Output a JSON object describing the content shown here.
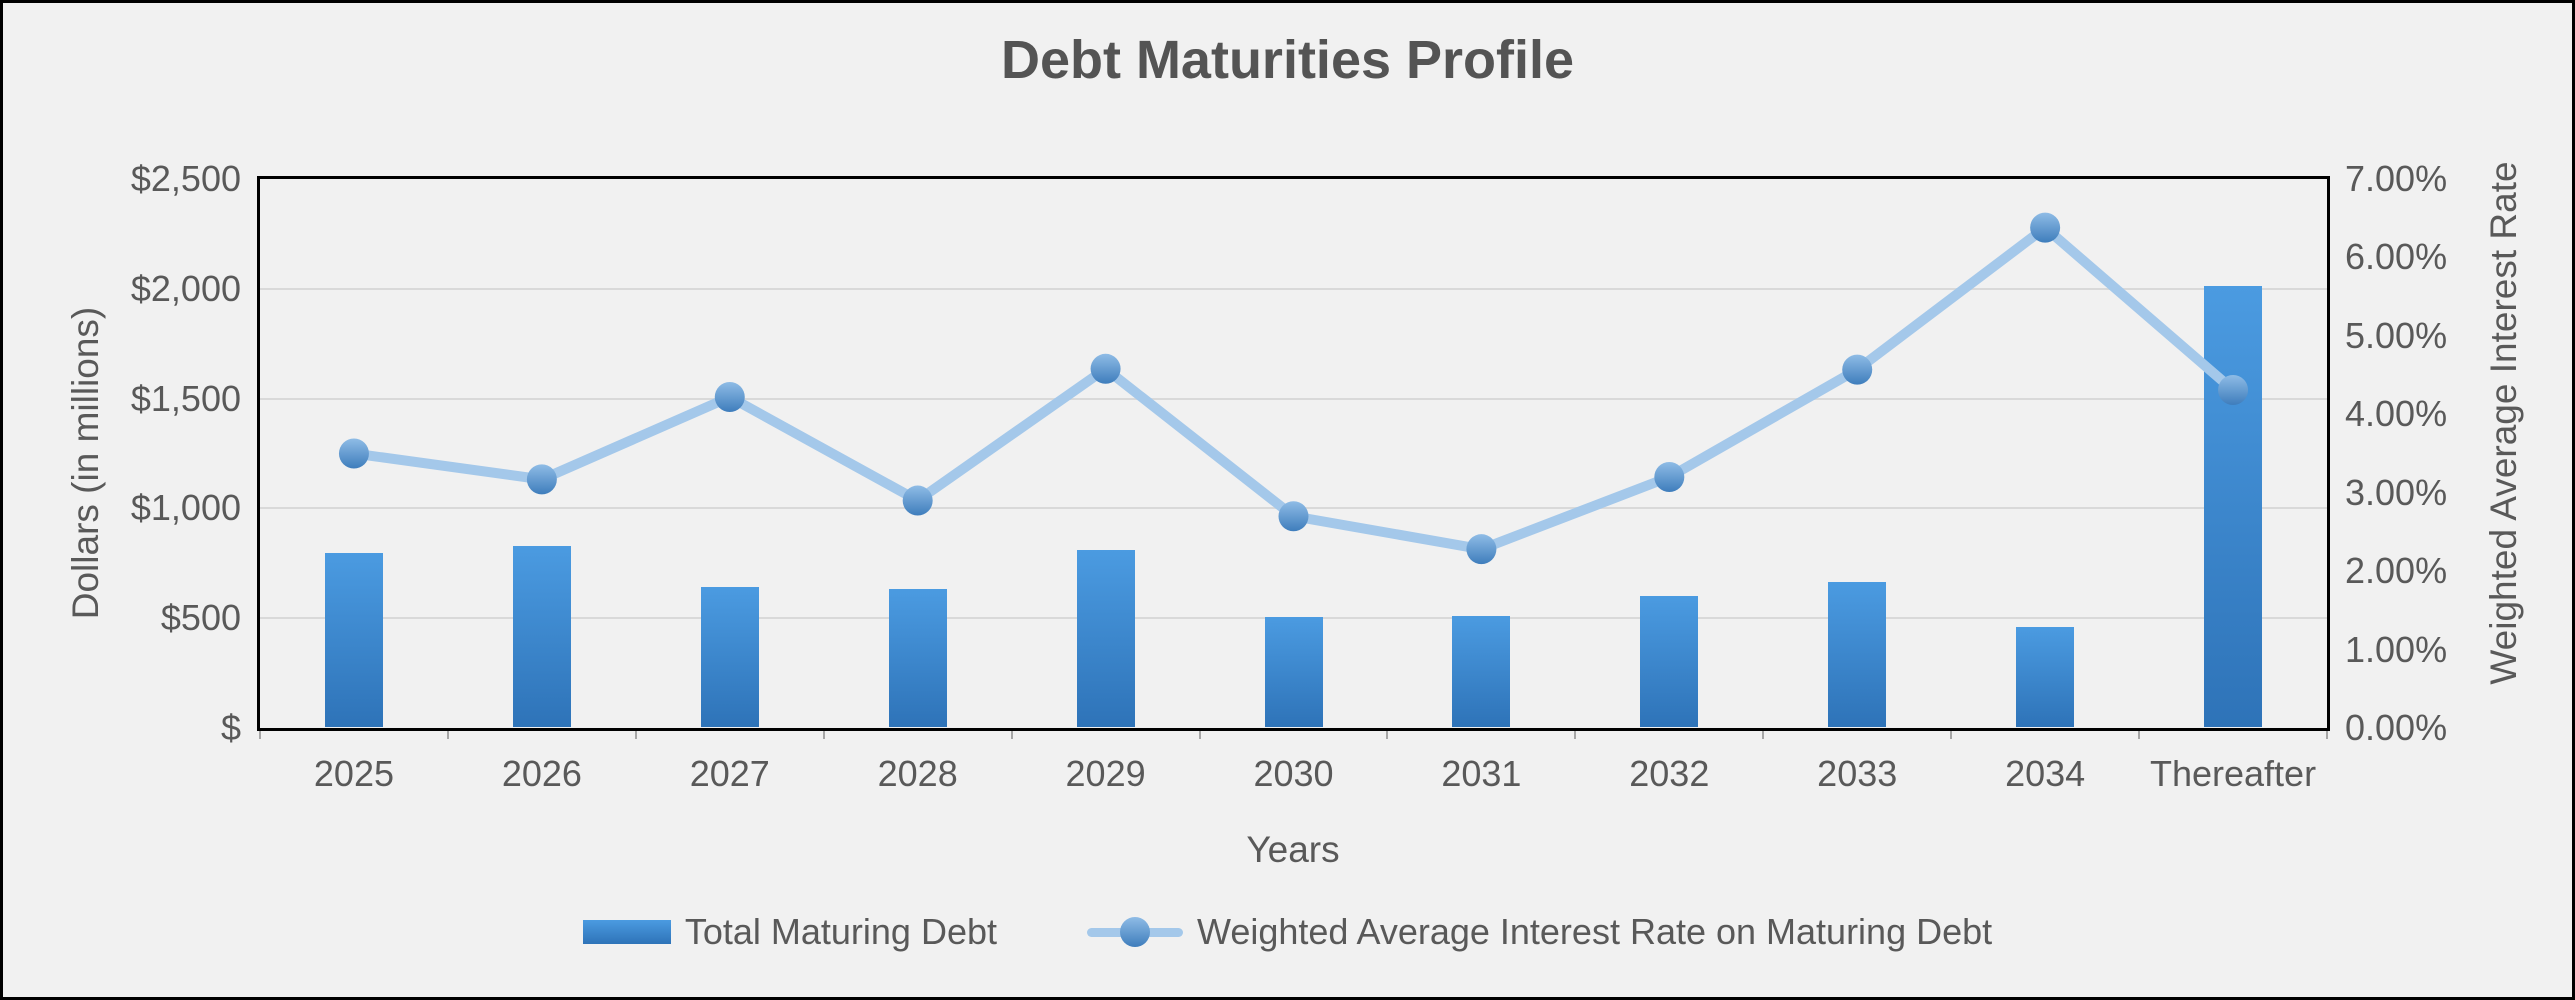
{
  "title": "Debt Maturities Profile",
  "chart_data": {
    "type": "bar",
    "subtype": "combo bar + line, dual y-axes",
    "categories": [
      "2025",
      "2026",
      "2027",
      "2028",
      "2029",
      "2030",
      "2031",
      "2032",
      "2033",
      "2034",
      "Thereafter"
    ],
    "series": [
      {
        "name": "Total Maturing Debt",
        "type": "bar",
        "axis": "left",
        "unit": "USD millions",
        "values": [
          795,
          830,
          640,
          635,
          810,
          505,
          510,
          600,
          665,
          460,
          2015
        ]
      },
      {
        "name": "Weighted Average Interest Rate on Maturing Debt",
        "type": "line",
        "axis": "right",
        "unit": "percent",
        "values": [
          3.5,
          3.17,
          4.22,
          2.9,
          4.58,
          2.7,
          2.28,
          3.2,
          4.57,
          6.38,
          4.31
        ]
      }
    ],
    "left_axis": {
      "title": "Dollars (in millions)",
      "range": [
        0,
        2500
      ],
      "tick_values": [
        2500,
        2000,
        1500,
        1000,
        500,
        0
      ],
      "tick_labels": [
        "$2,500",
        "$2,000",
        "$1,500",
        "$1,000",
        "$500",
        "$"
      ]
    },
    "right_axis": {
      "title": "Weighted Average Interest Rate",
      "range": [
        0,
        7
      ],
      "tick_values": [
        7,
        6,
        5,
        4,
        3,
        2,
        1,
        0
      ],
      "tick_labels": [
        "7.00%",
        "6.00%",
        "5.00%",
        "4.00%",
        "3.00%",
        "2.00%",
        "1.00%",
        "0.00%"
      ]
    },
    "x_axis": {
      "title": "Years"
    },
    "legend": {
      "position": "bottom"
    },
    "grid": "horizontal gridlines at $500 intervals"
  },
  "colors": {
    "background": "#F1F1F1",
    "text": "#595959",
    "title_text": "#545454",
    "gridline": "#D9D9D9",
    "axis_line": "#000000",
    "category_tick": "#A6A6A6",
    "bar_gradient_top": "#4B9BE1",
    "bar_gradient_bottom": "#2E73B8",
    "line": "#A4C8EA",
    "marker_gradient_top": "#8FBCE6",
    "marker_gradient_bottom": "#3E7DBC"
  }
}
